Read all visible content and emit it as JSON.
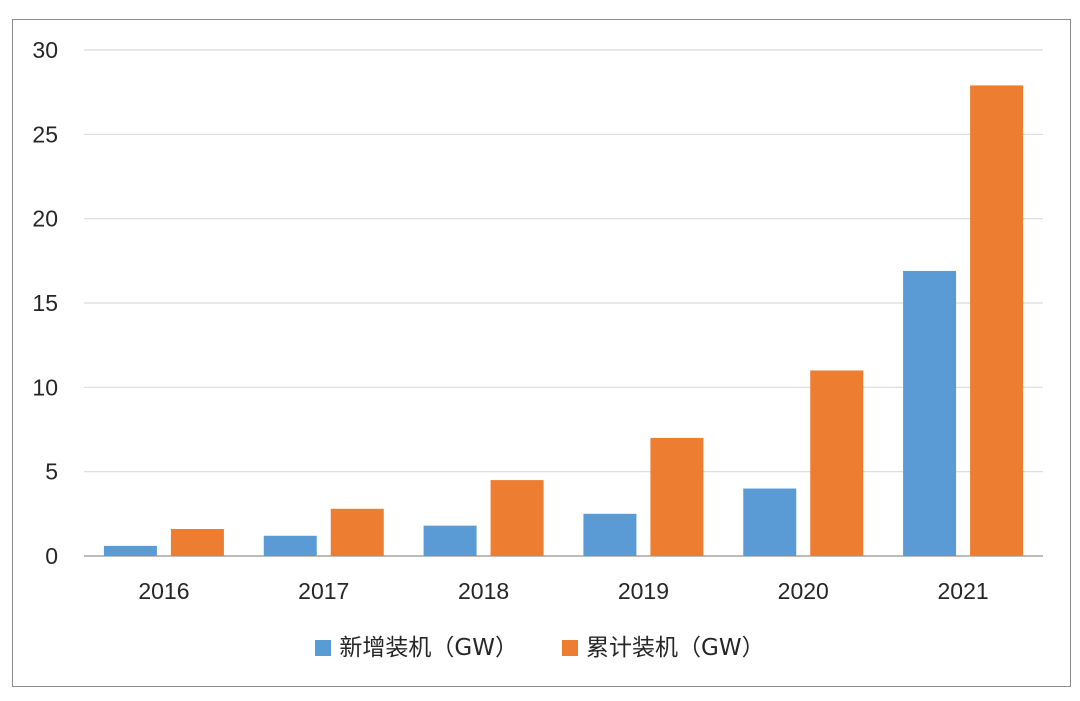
{
  "chart_data": {
    "type": "bar",
    "categories": [
      "2016",
      "2017",
      "2018",
      "2019",
      "2020",
      "2021"
    ],
    "series": [
      {
        "name": "新增装机（GW）",
        "color": "#5b9bd5",
        "values": [
          0.6,
          1.2,
          1.8,
          2.5,
          4.0,
          16.9
        ]
      },
      {
        "name": "累计装机（GW）",
        "color": "#ed7d31",
        "values": [
          1.6,
          2.8,
          4.5,
          7.0,
          11.0,
          27.9
        ]
      }
    ],
    "y_ticks": [
      "0",
      "5",
      "10",
      "15",
      "20",
      "25",
      "30"
    ],
    "ylim": [
      0,
      30
    ],
    "grid": true,
    "legend_position": "bottom-center",
    "title": "",
    "xlabel": "",
    "ylabel": ""
  }
}
